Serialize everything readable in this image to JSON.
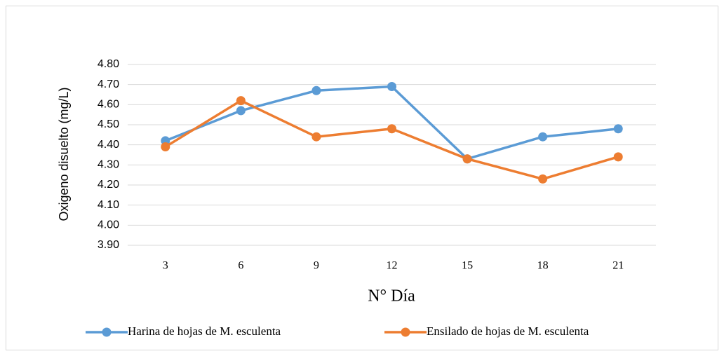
{
  "chart_data": {
    "type": "line",
    "x_label": "N° Día",
    "y_label": "Oxigeno disuelto (mg/L)",
    "categories": [
      "3",
      "6",
      "9",
      "12",
      "15",
      "18",
      "21"
    ],
    "series": [
      {
        "name": "Harina de hojas de M. esculenta",
        "color": "#5b9bd5",
        "values": [
          4.42,
          4.57,
          4.67,
          4.69,
          4.33,
          4.44,
          4.48
        ]
      },
      {
        "name": "Ensilado de hojas de M. esculenta",
        "color": "#ed7d31",
        "values": [
          4.39,
          4.62,
          4.44,
          4.48,
          4.33,
          4.23,
          4.34
        ]
      }
    ],
    "ylim": [
      3.9,
      4.8
    ],
    "yticks": [
      {
        "value": 3.9,
        "label": "3.90"
      },
      {
        "value": 4.0,
        "label": "4.00"
      },
      {
        "value": 4.1,
        "label": "4.10"
      },
      {
        "value": 4.2,
        "label": "4.20"
      },
      {
        "value": 4.3,
        "label": "4.30"
      },
      {
        "value": 4.4,
        "label": "4.40"
      },
      {
        "value": 4.5,
        "label": "4.50"
      },
      {
        "value": 4.6,
        "label": "4.60"
      },
      {
        "value": 4.7,
        "label": "4.70"
      },
      {
        "value": 4.8,
        "label": "4.80"
      }
    ],
    "grid": true,
    "legend": "bottom"
  }
}
